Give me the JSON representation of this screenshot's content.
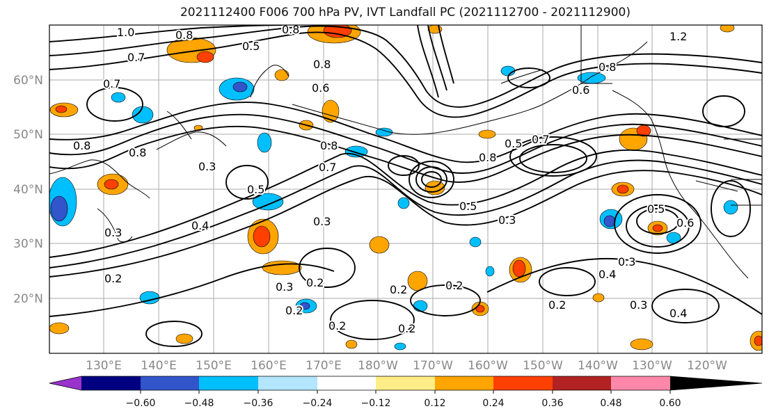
{
  "title": "2021112400 F006 700 hPa PV, IVT Landfall PC (2021112700 - 2021112900)",
  "lat_labels": [
    "60°N",
    "50°N",
    "40°N",
    "30°N",
    "20°N"
  ],
  "lon_labels": [
    "130°E",
    "140°E",
    "150°E",
    "160°E",
    "170°E",
    "180°W",
    "170°W",
    "160°W",
    "150°W",
    "140°W",
    "130°W",
    "120°W"
  ],
  "colorbar": {
    "ticks": [
      "−0.60",
      "−0.48",
      "−0.36",
      "−0.24",
      "−0.12",
      "0.12",
      "0.24",
      "0.36",
      "0.48",
      "0.60"
    ],
    "colors": [
      "#9933cc",
      "#000080",
      "#3355cc",
      "#00bfff",
      "#b3e5fc",
      "#ffffff",
      "#ffee88",
      "#ffa500",
      "#ff4000",
      "#b22222",
      "#ff88aa"
    ]
  },
  "contour_labels": [
    "1.0",
    "0.8",
    "0.5",
    "0.8",
    "1.2",
    "0.7",
    "0.8",
    "0.6",
    "0.8",
    "0.7",
    "0.6",
    "0.8",
    "0.8",
    "0.8",
    "0.3",
    "0.5",
    "0.7",
    "0.8",
    "0.5",
    "0.7",
    "0.5",
    "0.3",
    "0.4",
    "0.3",
    "0.3",
    "0.5",
    "0.6",
    "0.3",
    "0.2",
    "0.3",
    "0.2",
    "0.2",
    "0.2",
    "0.2",
    "0.4",
    "0.2",
    "0.3",
    "0.4",
    "0.2",
    "0.2"
  ]
}
